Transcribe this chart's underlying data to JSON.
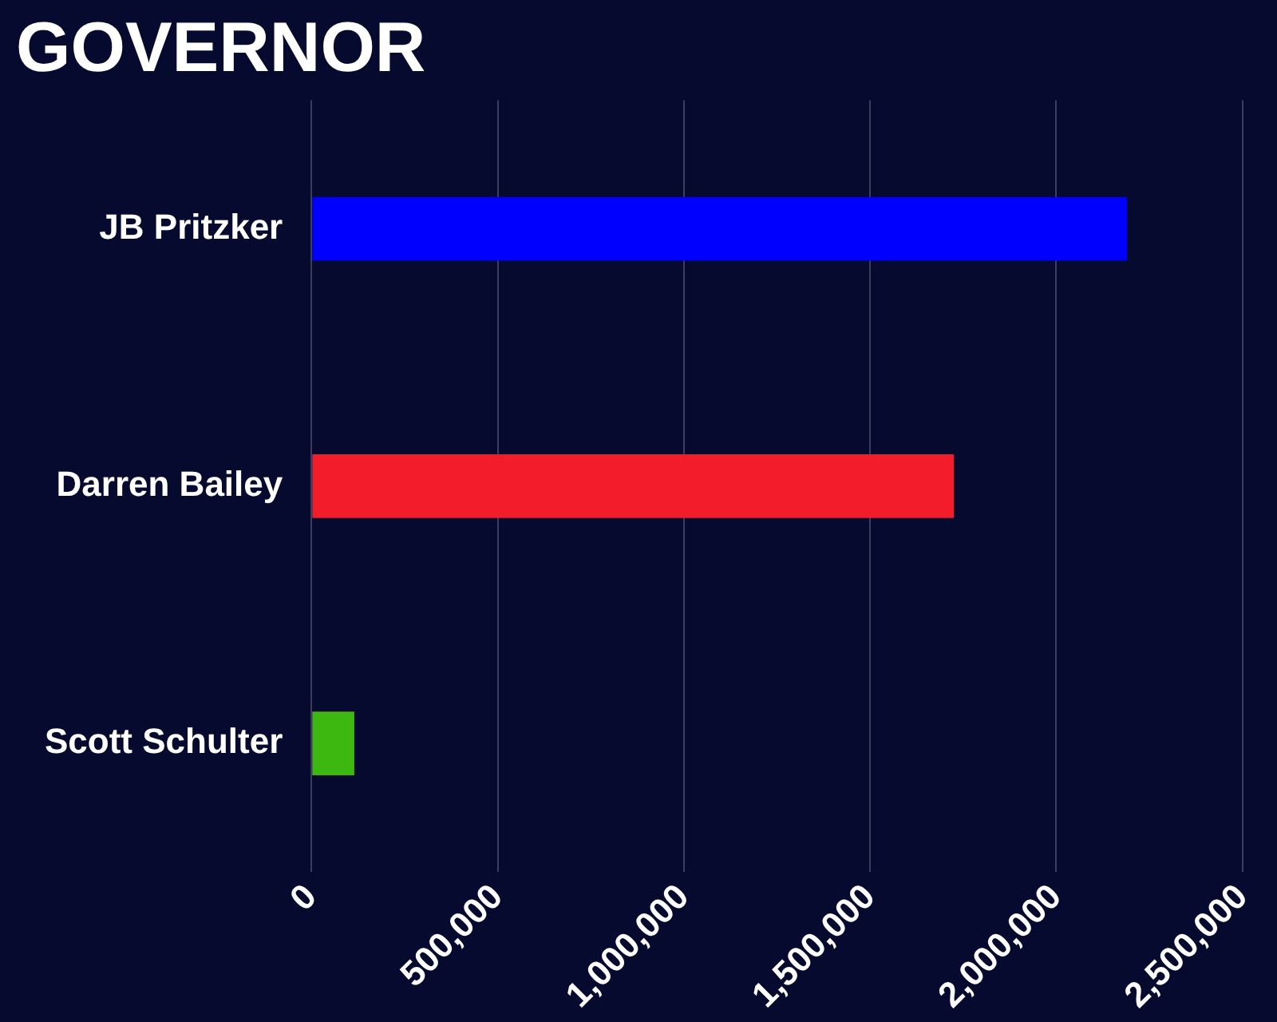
{
  "chart_data": {
    "type": "bar",
    "orientation": "horizontal",
    "title": "GOVERNOR",
    "categories": [
      "JB Pritzker",
      "Darren Bailey",
      "Scott Schulter"
    ],
    "values": [
      2190000,
      1725000,
      115000
    ],
    "colors": [
      "#0000ff",
      "#f21c2a",
      "#3cb810"
    ],
    "xlim": [
      0,
      2500000
    ],
    "xticks": [
      {
        "value": 0,
        "label": "0"
      },
      {
        "value": 500000,
        "label": "500,000"
      },
      {
        "value": 1000000,
        "label": "1,000,000"
      },
      {
        "value": 1500000,
        "label": "1,500,000"
      },
      {
        "value": 2000000,
        "label": "2,000,000"
      },
      {
        "value": 2500000,
        "label": "2,500,000"
      }
    ],
    "grid": "x",
    "legend": false
  }
}
